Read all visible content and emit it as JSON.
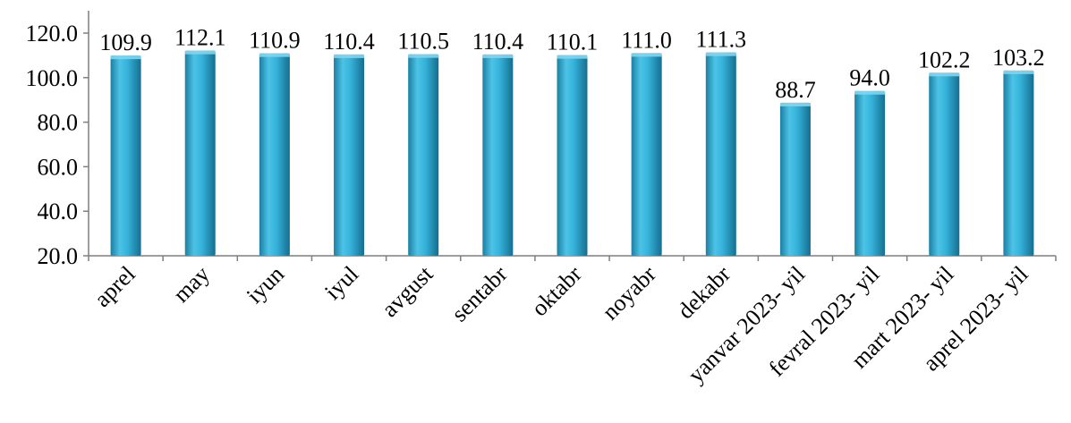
{
  "chart_data": {
    "type": "bar",
    "title": "",
    "xlabel": "",
    "ylabel": "",
    "categories": [
      "aprel",
      "may",
      "iyun",
      "iyul",
      "avgust",
      "sentabr",
      "oktabr",
      "noyabr",
      "dekabr",
      "yanvar 2023- yil",
      "fevral 2023- yil",
      "mart 2023- yil",
      "aprel 2023- yil"
    ],
    "values": [
      109.9,
      112.1,
      110.9,
      110.4,
      110.5,
      110.4,
      110.1,
      111.0,
      111.3,
      88.7,
      94.0,
      102.2,
      103.2
    ],
    "data_labels": [
      "109.9",
      "112.1",
      "110.9",
      "110.4",
      "110.5",
      "110.4",
      "110.1",
      "111.0",
      "111.3",
      "88.7",
      "94.0",
      "102.2",
      "103.2"
    ],
    "ylim": [
      20,
      120
    ],
    "y_ticks": [
      20,
      40,
      60,
      80,
      100,
      120
    ],
    "y_tick_labels": [
      "20.0",
      "40.0",
      "60.0",
      "80.0",
      "100.0",
      "120.0"
    ],
    "grid": false,
    "legend": "none",
    "bar_color": "#29a9d1",
    "bar_highlight": "#7fd6ef",
    "bar_shadow": "#1a6f8c",
    "axis_color": "#7f7f7f"
  }
}
